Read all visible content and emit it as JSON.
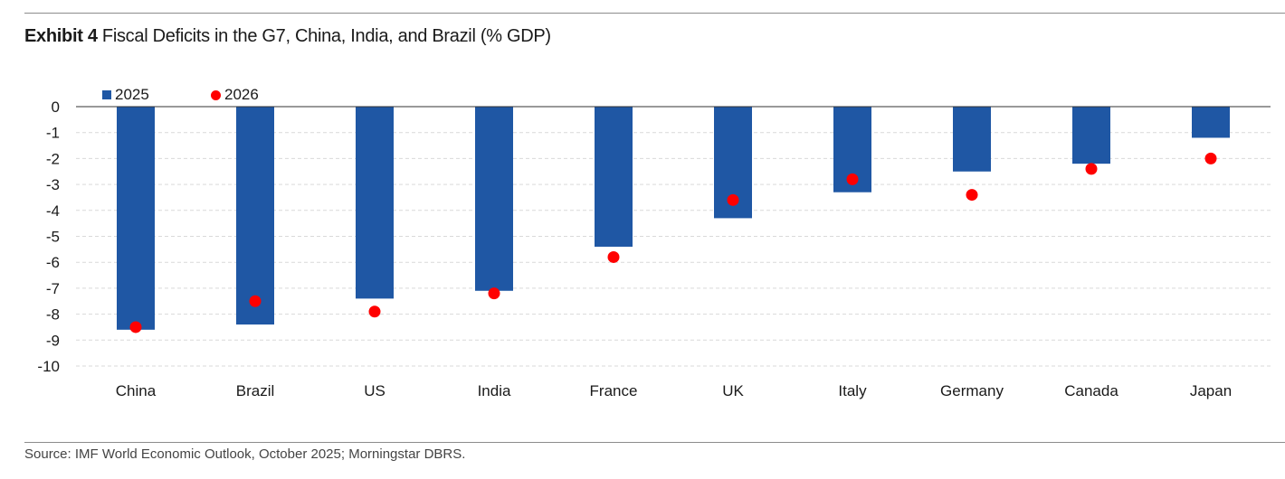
{
  "title": {
    "label": "Exhibit 4",
    "text": "Fiscal Deficits in the G7, China, India, and Brazil (% GDP)"
  },
  "legend": {
    "series1": "2025",
    "series2": "2026"
  },
  "source": "Source: IMF World Economic Outlook, October 2025; Morningstar DBRS.",
  "colors": {
    "bar": "#1f57a4",
    "dot": "#ff0000",
    "grid": "#d9d9d9"
  },
  "chart_data": {
    "type": "bar",
    "categories": [
      "China",
      "Brazil",
      "US",
      "India",
      "France",
      "UK",
      "Italy",
      "Germany",
      "Canada",
      "Japan"
    ],
    "series": [
      {
        "name": "2025",
        "type": "bar",
        "values": [
          -8.6,
          -8.4,
          -7.4,
          -7.1,
          -5.4,
          -4.3,
          -3.3,
          -2.5,
          -2.2,
          -1.2
        ]
      },
      {
        "name": "2026",
        "type": "scatter",
        "values": [
          -8.5,
          -7.5,
          -7.9,
          -7.2,
          -5.8,
          -3.6,
          -2.8,
          -3.4,
          -2.4,
          -2.0
        ]
      }
    ],
    "yticks": [
      0,
      -1,
      -2,
      -3,
      -4,
      -5,
      -6,
      -7,
      -8,
      -9,
      -10
    ],
    "ylim": [
      -10,
      0
    ],
    "grid": true,
    "legend_position": "top-left"
  }
}
